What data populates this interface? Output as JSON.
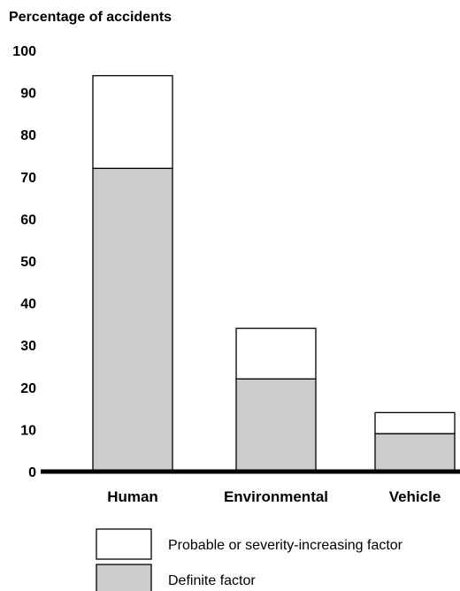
{
  "chart_data": {
    "type": "bar",
    "stacked": true,
    "title": "",
    "xlabel": "",
    "ylabel": "Percentage of accidents",
    "ylim": [
      0,
      100
    ],
    "yticks": [
      "0",
      "10",
      "20",
      "30",
      "40",
      "50",
      "60",
      "70",
      "80",
      "90",
      "100"
    ],
    "grid": false,
    "legend_position": "bottom",
    "categories": [
      "Human",
      "Environmental",
      "Vehicle"
    ],
    "series": [
      {
        "name": "Definite factor",
        "values": [
          72,
          22,
          9
        ],
        "color": "#cccccc"
      },
      {
        "name": "Probable or severity-increasing factor",
        "values": [
          22,
          12,
          5
        ],
        "color": "#ffffff"
      }
    ],
    "legend": [
      {
        "label": "Probable or severity-increasing factor",
        "color": "#ffffff"
      },
      {
        "label": "Definite factor",
        "color": "#cccccc"
      }
    ]
  }
}
